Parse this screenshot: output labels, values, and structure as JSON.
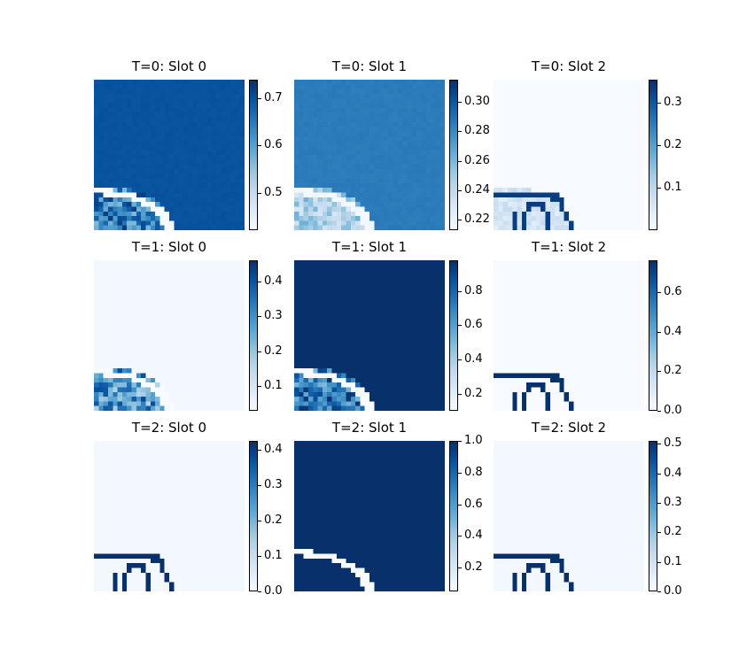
{
  "figure": {
    "colormap": "Blues",
    "colormap_stops": [
      "#f7fbff",
      "#deebf7",
      "#c6dbef",
      "#9ecae1",
      "#6baed6",
      "#4292c6",
      "#2171b5",
      "#08519c",
      "#08306b"
    ]
  },
  "chart_data": [
    {
      "type": "heatmap",
      "title": "T=0: Slot 0",
      "colorbar": {
        "ticks": [
          0.5,
          0.6,
          0.7
        ],
        "tick_labels": [
          "0.5",
          "0.6",
          "0.7"
        ],
        "range": [
          0.42,
          0.74
        ]
      }
    },
    {
      "type": "heatmap",
      "title": "T=0: Slot 1",
      "colorbar": {
        "ticks": [
          0.22,
          0.24,
          0.26,
          0.28,
          0.3
        ],
        "tick_labels": [
          "0.22",
          "0.24",
          "0.26",
          "0.28",
          "0.30"
        ],
        "range": [
          0.213,
          0.315
        ]
      }
    },
    {
      "type": "heatmap",
      "title": "T=0: Slot 2",
      "colorbar": {
        "ticks": [
          0.1,
          0.2,
          0.3
        ],
        "tick_labels": [
          "0.1",
          "0.2",
          "0.3"
        ],
        "range": [
          0.0,
          0.355
        ]
      }
    },
    {
      "type": "heatmap",
      "title": "T=1: Slot 0",
      "colorbar": {
        "ticks": [
          0.1,
          0.2,
          0.3,
          0.4
        ],
        "tick_labels": [
          "0.1",
          "0.2",
          "0.3",
          "0.4"
        ],
        "range": [
          0.03,
          0.46
        ]
      }
    },
    {
      "type": "heatmap",
      "title": "T=1: Slot 1",
      "colorbar": {
        "ticks": [
          0.2,
          0.4,
          0.6,
          0.8
        ],
        "tick_labels": [
          "0.2",
          "0.4",
          "0.6",
          "0.8"
        ],
        "range": [
          0.1,
          0.98
        ]
      }
    },
    {
      "type": "heatmap",
      "title": "T=1: Slot 2",
      "colorbar": {
        "ticks": [
          0.0,
          0.2,
          0.4,
          0.6
        ],
        "tick_labels": [
          "0.0",
          "0.2",
          "0.4",
          "0.6"
        ],
        "range": [
          0.0,
          0.76
        ]
      }
    },
    {
      "type": "heatmap",
      "title": "T=2: Slot 0",
      "colorbar": {
        "ticks": [
          0.0,
          0.1,
          0.2,
          0.3,
          0.4
        ],
        "tick_labels": [
          "0.0",
          "0.1",
          "0.2",
          "0.3",
          "0.4"
        ],
        "range": [
          0.0,
          0.425
        ]
      }
    },
    {
      "type": "heatmap",
      "title": "T=2: Slot 1",
      "colorbar": {
        "ticks": [
          0.2,
          0.4,
          0.6,
          0.8,
          1.0
        ],
        "tick_labels": [
          "0.2",
          "0.4",
          "0.6",
          "0.8",
          "1.0"
        ],
        "range": [
          0.05,
          1.0
        ]
      }
    },
    {
      "type": "heatmap",
      "title": "T=2: Slot 2",
      "colorbar": {
        "ticks": [
          0.0,
          0.1,
          0.2,
          0.3,
          0.4,
          0.5
        ],
        "tick_labels": [
          "0.0",
          "0.1",
          "0.2",
          "0.3",
          "0.4",
          "0.5"
        ],
        "range": [
          0.0,
          0.51
        ]
      }
    }
  ]
}
